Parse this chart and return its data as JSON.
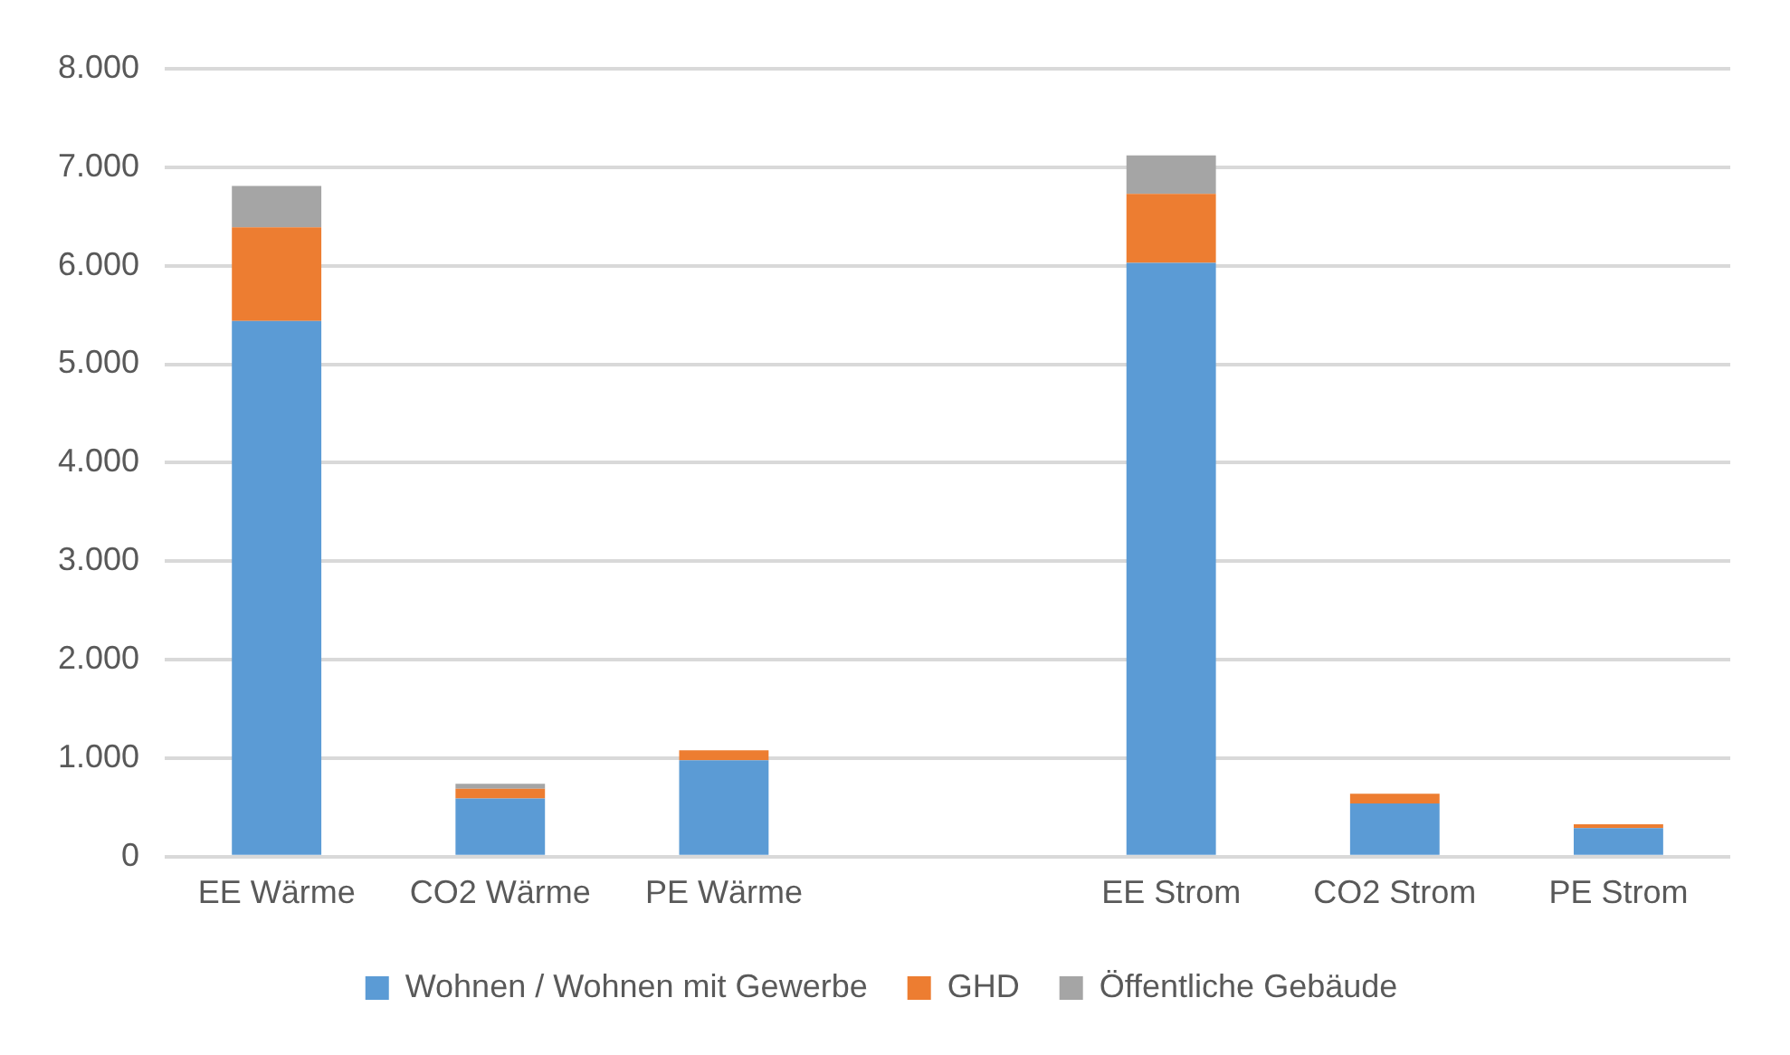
{
  "chart_data": {
    "type": "bar",
    "stacked": true,
    "categories": [
      "EE Wärme",
      "CO2 Wärme",
      "PE Wärme",
      null,
      "EE Strom",
      "CO2 Strom",
      "PE Strom"
    ],
    "series": [
      {
        "name": "Wohnen / Wohnen mit Gewerbe",
        "color": "#5b9bd5",
        "values": [
          5440,
          590,
          980,
          null,
          6030,
          540,
          290
        ]
      },
      {
        "name": "GHD",
        "color": "#ed7d31",
        "values": [
          950,
          100,
          100,
          null,
          700,
          100,
          40
        ]
      },
      {
        "name": "Öffentliche Gebäude",
        "color": "#a5a5a5",
        "values": [
          420,
          50,
          null,
          null,
          390,
          null,
          null
        ]
      }
    ],
    "ylim": [
      0,
      8000
    ],
    "yticks": [
      {
        "value": 0,
        "label": "0"
      },
      {
        "value": 1000,
        "label": "1.000"
      },
      {
        "value": 2000,
        "label": "2.000"
      },
      {
        "value": 3000,
        "label": "3.000"
      },
      {
        "value": 4000,
        "label": "4.000"
      },
      {
        "value": 5000,
        "label": "5.000"
      },
      {
        "value": 6000,
        "label": "6.000"
      },
      {
        "value": 7000,
        "label": "7.000"
      },
      {
        "value": 8000,
        "label": "8.000"
      }
    ],
    "grid": "y",
    "legend": "bottom"
  }
}
